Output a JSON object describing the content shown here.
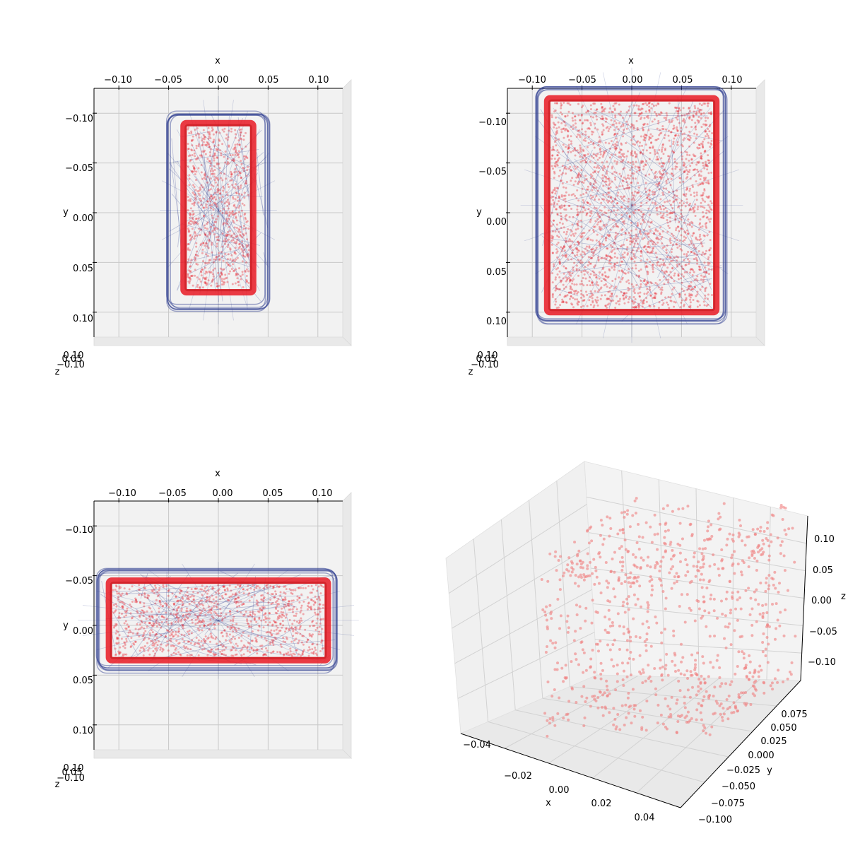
{
  "chart_data": [
    {
      "type": "scatter",
      "view": "top",
      "xlabel": "x",
      "ylabel": "y",
      "zlabel": "z",
      "xticks": [
        "−0.10",
        "−0.05",
        "0.00",
        "0.05",
        "0.10"
      ],
      "yticks": [
        "−0.10",
        "−0.05",
        "0.00",
        "0.05",
        "0.10"
      ],
      "zticks": [
        "−0.10",
        "0.05",
        "0.10"
      ],
      "xlim": [
        -0.125,
        0.125
      ],
      "ylim": [
        -0.125,
        0.125
      ],
      "grid": true,
      "series": [
        {
          "role": "mesh",
          "color": "#2b3a8f",
          "rect": {
            "x": [
              -0.05,
              0.05
            ],
            "y": [
              -0.1,
              0.095
            ]
          }
        },
        {
          "role": "points",
          "color": "#e8202a",
          "rect": {
            "x": [
              -0.035,
              0.035
            ],
            "y": [
              -0.09,
              0.08
            ]
          }
        }
      ]
    },
    {
      "type": "scatter",
      "view": "top",
      "xlabel": "x",
      "ylabel": "y",
      "zlabel": "z",
      "xticks": [
        "−0.10",
        "−0.05",
        "0.00",
        "0.05",
        "0.10"
      ],
      "yticks": [
        "−0.10",
        "−0.05",
        "0.00",
        "0.05",
        "0.10"
      ],
      "zticks": [
        "−0.10",
        "0.05",
        "0.10"
      ],
      "xlim": [
        -0.125,
        0.125
      ],
      "ylim": [
        -0.125,
        0.125
      ],
      "grid": true,
      "series": [
        {
          "role": "mesh",
          "color": "#2b3a8f",
          "rect": {
            "x": [
              -0.095,
              0.095
            ],
            "y": [
              -0.125,
              0.11
            ]
          }
        },
        {
          "role": "points",
          "color": "#e8202a",
          "rect": {
            "x": [
              -0.085,
              0.085
            ],
            "y": [
              -0.115,
              0.1
            ]
          }
        }
      ]
    },
    {
      "type": "scatter",
      "view": "top",
      "xlabel": "x",
      "ylabel": "y",
      "zlabel": "z",
      "xticks": [
        "−0.10",
        "−0.05",
        "0.00",
        "0.05",
        "0.10"
      ],
      "yticks": [
        "−0.10",
        "−0.05",
        "0.00",
        "0.05",
        "0.10"
      ],
      "zticks": [
        "−0.10",
        "0.05",
        "0.10"
      ],
      "xlim": [
        -0.125,
        0.125
      ],
      "ylim": [
        -0.125,
        0.125
      ],
      "grid": true,
      "series": [
        {
          "role": "mesh",
          "color": "#2b3a8f",
          "rect": {
            "x": [
              -0.12,
              0.12
            ],
            "y": [
              -0.055,
              0.045
            ]
          }
        },
        {
          "role": "points",
          "color": "#e8202a",
          "rect": {
            "x": [
              -0.11,
              0.11
            ],
            "y": [
              -0.045,
              0.035
            ]
          }
        }
      ]
    },
    {
      "type": "scatter",
      "view": "3d",
      "xlabel": "x",
      "ylabel": "y",
      "zlabel": "z",
      "xticks": [
        "−0.04",
        "−0.02",
        "0.00",
        "0.02",
        "0.04"
      ],
      "yticks": [
        "−0.100",
        "−0.075",
        "−0.050",
        "−0.025",
        "0.000",
        "0.025",
        "0.050",
        "0.075"
      ],
      "zticks": [
        "0.10",
        "0.05",
        "0.00",
        "−0.05",
        "−0.10"
      ],
      "xlim": [
        -0.05,
        0.05
      ],
      "ylim": [
        -0.1,
        0.09
      ],
      "zlim": [
        -0.13,
        0.13
      ],
      "grid": true,
      "series": [
        {
          "role": "points",
          "color": "#f08080"
        }
      ]
    }
  ]
}
